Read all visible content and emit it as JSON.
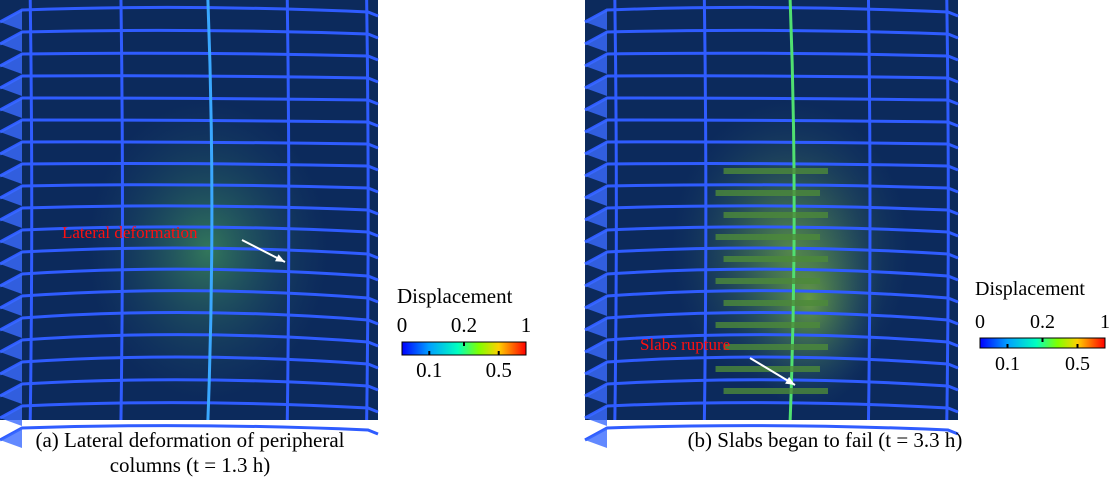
{
  "panels": [
    {
      "caption": "(a) Lateral deformation of peripheral columns (t = 1.3 h)",
      "annotation": "Lateral deformation",
      "colorbar": {
        "title": "Displacement",
        "top_ticks": [
          0,
          0.2,
          1
        ],
        "bottom_ticks": [
          0.1,
          0.5
        ]
      }
    },
    {
      "caption": "(b) Slabs began to fail (t = 3.3 h)",
      "annotation": "Slabs rupture",
      "colorbar": {
        "title": "Displacement",
        "top_ticks": [
          0,
          0.2,
          1
        ],
        "bottom_ticks": [
          0.1,
          0.5
        ]
      }
    }
  ]
}
